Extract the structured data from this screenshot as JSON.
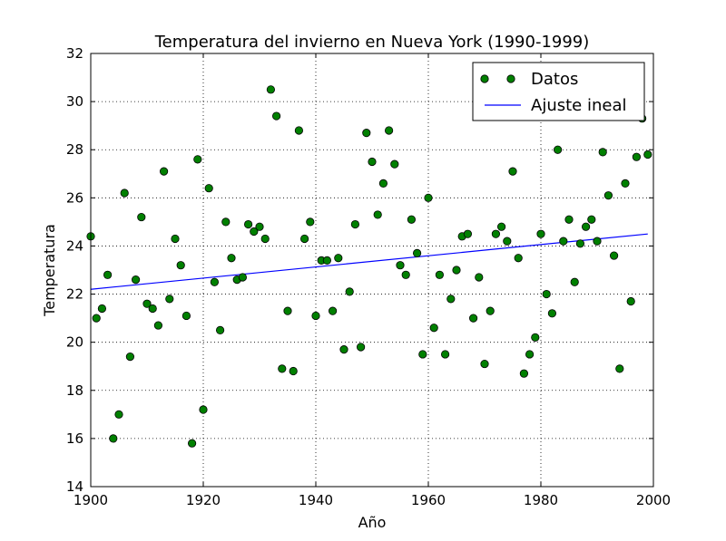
{
  "chart_data": {
    "type": "scatter",
    "title": "Temperatura del invierno en Nueva York (1990-1999)",
    "xlabel": "Año",
    "ylabel": "Temperatura",
    "xlim": [
      1900,
      2000
    ],
    "ylim": [
      14,
      32
    ],
    "x_ticks": [
      "1900",
      "1920",
      "1940",
      "1960",
      "1980",
      "2000"
    ],
    "y_ticks": [
      "14",
      "16",
      "18",
      "20",
      "22",
      "24",
      "26",
      "28",
      "30",
      "32"
    ],
    "grid": true,
    "legend_placement": "top-right",
    "series": [
      {
        "name": "Datos",
        "kind": "points",
        "color": "#008000",
        "x": [
          1900,
          1901,
          1902,
          1903,
          1904,
          1905,
          1906,
          1907,
          1908,
          1909,
          1910,
          1911,
          1912,
          1913,
          1914,
          1915,
          1916,
          1917,
          1918,
          1919,
          1920,
          1921,
          1922,
          1923,
          1924,
          1925,
          1926,
          1927,
          1928,
          1929,
          1930,
          1931,
          1932,
          1933,
          1934,
          1935,
          1936,
          1937,
          1938,
          1939,
          1940,
          1941,
          1942,
          1943,
          1944,
          1945,
          1946,
          1947,
          1948,
          1949,
          1950,
          1951,
          1952,
          1953,
          1954,
          1955,
          1956,
          1957,
          1958,
          1959,
          1960,
          1961,
          1962,
          1963,
          1964,
          1965,
          1966,
          1967,
          1968,
          1969,
          1970,
          1971,
          1972,
          1973,
          1974,
          1975,
          1976,
          1977,
          1978,
          1979,
          1980,
          1981,
          1982,
          1983,
          1984,
          1985,
          1986,
          1987,
          1988,
          1989,
          1990,
          1991,
          1992,
          1993,
          1994,
          1995,
          1996,
          1997,
          1998,
          1999
        ],
        "y": [
          24.4,
          21.0,
          21.4,
          22.8,
          16.0,
          17.0,
          26.2,
          19.4,
          22.6,
          25.2,
          21.6,
          21.4,
          20.7,
          27.1,
          21.8,
          24.3,
          23.2,
          21.1,
          15.8,
          27.6,
          17.2,
          26.4,
          22.5,
          20.5,
          25.0,
          23.5,
          22.6,
          22.7,
          24.9,
          24.6,
          24.8,
          24.3,
          30.5,
          29.4,
          18.9,
          21.3,
          18.8,
          28.8,
          24.3,
          25.0,
          21.1,
          23.4,
          23.4,
          21.3,
          23.5,
          19.7,
          22.1,
          24.9,
          19.8,
          28.7,
          27.5,
          25.3,
          26.6,
          28.8,
          27.4,
          23.2,
          22.8,
          25.1,
          23.7,
          19.5,
          26.0,
          20.6,
          22.8,
          19.5,
          21.8,
          23.0,
          24.4,
          24.5,
          21.0,
          22.7,
          19.1,
          21.3,
          24.5,
          24.8,
          24.2,
          27.1,
          23.5,
          18.7,
          19.5,
          20.2,
          24.5,
          22.0,
          21.2,
          28.0,
          24.2,
          25.1,
          22.5,
          24.1,
          24.8,
          25.1,
          24.2,
          27.9,
          26.1,
          23.6,
          18.9,
          26.6,
          21.7,
          27.7,
          29.3,
          27.8
        ]
      },
      {
        "name": "Ajuste ineal",
        "kind": "line",
        "color": "#0000ff",
        "x": [
          1900,
          1999
        ],
        "y": [
          22.2,
          24.5
        ]
      }
    ]
  }
}
